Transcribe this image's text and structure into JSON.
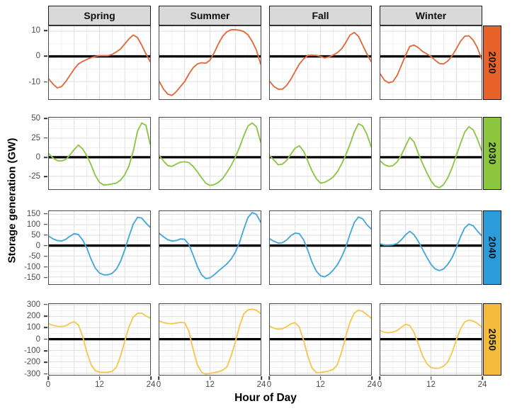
{
  "chart_data": {
    "type": "line",
    "title": "",
    "x_axis": {
      "label": "Hour of Day",
      "ticks": [
        0,
        12,
        24
      ],
      "range": [
        0,
        24
      ]
    },
    "y_axis": {
      "label": "Storage generation (GW)"
    },
    "x_hours": [
      0,
      1,
      2,
      3,
      4,
      5,
      6,
      7,
      8,
      9,
      10,
      11,
      12,
      13,
      14,
      15,
      16,
      17,
      18,
      19,
      20,
      21,
      22,
      23,
      24
    ],
    "facet_columns": [
      "Spring",
      "Summer",
      "Fall",
      "Winter"
    ],
    "facet_rows": [
      {
        "year": "2020",
        "strip_color": "#e8632a",
        "line_color": "#df6b3d",
        "yticks": [
          10,
          0,
          -10
        ],
        "ylim": [
          -17,
          12
        ],
        "series": {
          "Spring": [
            -9,
            -11,
            -12.5,
            -12,
            -10,
            -7.5,
            -5,
            -3,
            -2,
            -1.2,
            -0.5,
            0,
            0.3,
            0.3,
            0.3,
            0.8,
            1.8,
            3,
            5,
            7,
            8.5,
            7.5,
            4.5,
            1,
            -2
          ],
          "Summer": [
            -10,
            -13,
            -15,
            -15.5,
            -14,
            -12,
            -10,
            -7,
            -4.5,
            -3,
            -2.5,
            -2.7,
            -1.5,
            1.5,
            5,
            8,
            9.8,
            10.6,
            10.6,
            10.4,
            9.9,
            8.6,
            6,
            2.5,
            -3
          ],
          "Fall": [
            -10,
            -12,
            -13,
            -13,
            -11.5,
            -9,
            -6,
            -3,
            -1,
            0.4,
            0.5,
            0.4,
            0,
            -0.6,
            -0.2,
            0.5,
            1.5,
            3,
            5.5,
            8.5,
            9.5,
            8,
            4.5,
            1,
            -2
          ],
          "Winter": [
            -7,
            -9.5,
            -10.5,
            -10,
            -7.5,
            -3.5,
            0.5,
            4,
            4.5,
            3.5,
            2,
            1,
            0,
            -1.5,
            -2.8,
            -3,
            -1.8,
            0.2,
            3,
            6,
            8,
            8.2,
            6.5,
            3.5,
            -1
          ]
        }
      },
      {
        "year": "2030",
        "strip_color": "#8cc63f",
        "line_color": "#8cc644",
        "yticks": [
          50,
          25,
          0,
          -25
        ],
        "ylim": [
          -42,
          52
        ],
        "series": {
          "Spring": [
            4.5,
            -1,
            -4.5,
            -5,
            -3,
            3,
            10,
            16,
            11,
            2,
            -10,
            -24,
            -33,
            -36.5,
            -36,
            -35,
            -34,
            -30,
            -23,
            -11,
            8,
            34,
            45,
            42,
            17
          ],
          "Summer": [
            2,
            -5,
            -11,
            -12,
            -9,
            -6.5,
            -6,
            -7,
            -12,
            -19,
            -27,
            -34,
            -37,
            -36,
            -33,
            -28,
            -20,
            -11,
            0,
            13,
            28,
            41,
            45,
            40,
            20
          ],
          "Fall": [
            2,
            -4,
            -10,
            -9,
            -4,
            4,
            12,
            15,
            8,
            -5,
            -18,
            -28,
            -34,
            -33,
            -30,
            -26,
            -19,
            -9,
            3,
            17,
            33,
            44,
            41,
            30,
            14
          ],
          "Winter": [
            -5,
            -10,
            -12,
            -11,
            -6,
            3,
            15,
            26,
            20,
            5,
            -8,
            -20,
            -31,
            -38,
            -40,
            -36,
            -27,
            -14,
            2,
            18,
            33,
            40,
            36,
            24,
            9
          ]
        }
      },
      {
        "year": "2040",
        "strip_color": "#2b9cd8",
        "line_color": "#44a8d8",
        "yticks": [
          150,
          100,
          50,
          0,
          -50,
          -100,
          -150
        ],
        "ylim": [
          -185,
          165
        ],
        "series": {
          "Spring": [
            45,
            32,
            24,
            22,
            30,
            45,
            57,
            53,
            27,
            -12,
            -65,
            -108,
            -132,
            -140,
            -140,
            -133,
            -113,
            -75,
            -20,
            45,
            103,
            135,
            132,
            108,
            88
          ],
          "Summer": [
            58,
            42,
            28,
            22,
            24,
            32,
            30,
            5,
            -45,
            -100,
            -140,
            -158,
            -155,
            -140,
            -122,
            -105,
            -88,
            -65,
            -32,
            15,
            78,
            135,
            158,
            150,
            112
          ],
          "Fall": [
            32,
            20,
            12,
            14,
            27,
            48,
            60,
            57,
            27,
            -22,
            -80,
            -122,
            -145,
            -150,
            -138,
            -118,
            -92,
            -55,
            -8,
            55,
            110,
            137,
            128,
            100,
            80
          ],
          "Winter": [
            8,
            2,
            2,
            4,
            10,
            28,
            52,
            68,
            52,
            20,
            -18,
            -55,
            -90,
            -112,
            -120,
            -112,
            -90,
            -58,
            -12,
            42,
            85,
            103,
            95,
            70,
            48
          ]
        }
      },
      {
        "year": "2050",
        "strip_color": "#f4bb3d",
        "line_color": "#f6c64f",
        "yticks": [
          300,
          200,
          100,
          0,
          -100,
          -200,
          -300
        ],
        "ylim": [
          -315,
          310
        ],
        "series": {
          "Spring": [
            135,
            122,
            113,
            112,
            118,
            140,
            153,
            126,
            25,
            -115,
            -225,
            -278,
            -290,
            -293,
            -292,
            -285,
            -248,
            -148,
            -15,
            110,
            195,
            228,
            230,
            205,
            185
          ],
          "Summer": [
            160,
            146,
            138,
            136,
            141,
            148,
            145,
            70,
            -90,
            -225,
            -292,
            -308,
            -303,
            -295,
            -288,
            -275,
            -245,
            -150,
            -25,
            115,
            222,
            258,
            265,
            255,
            225
          ],
          "Fall": [
            115,
            96,
            88,
            92,
            110,
            135,
            145,
            105,
            -10,
            -150,
            -255,
            -295,
            -293,
            -288,
            -280,
            -268,
            -225,
            -115,
            25,
            150,
            230,
            255,
            245,
            215,
            185
          ],
          "Winter": [
            75,
            60,
            57,
            62,
            76,
            105,
            130,
            120,
            58,
            -42,
            -145,
            -215,
            -250,
            -258,
            -255,
            -238,
            -200,
            -118,
            -8,
            90,
            152,
            168,
            160,
            138,
            110
          ]
        }
      }
    ]
  }
}
